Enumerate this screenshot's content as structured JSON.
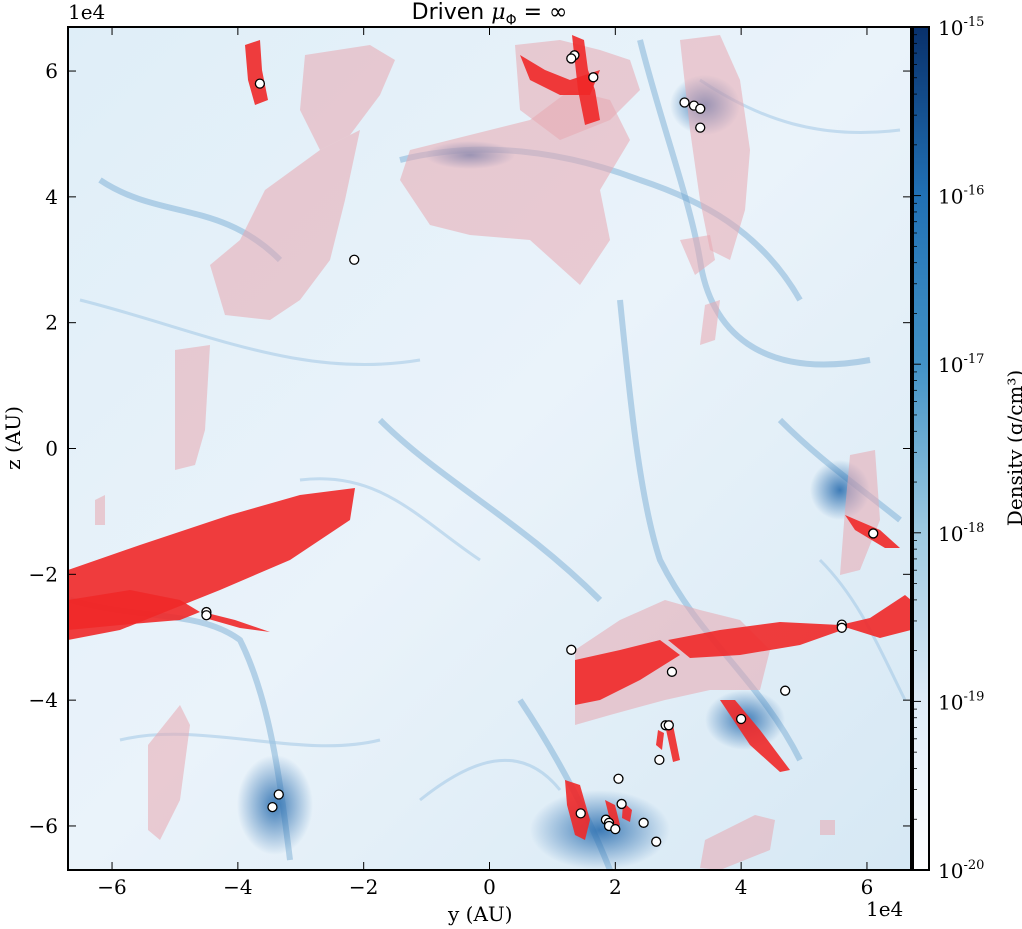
{
  "chart_data": {
    "type": "heatmap",
    "title_prefix": "Driven ",
    "title_math": "μ",
    "title_sub": "Φ",
    "title_suffix": " = ∞",
    "xlabel": "y  (AU)",
    "ylabel": "z  (AU)",
    "x_offset_label": "1e4",
    "y_offset_label": "1e4",
    "xlim": [
      -6.7,
      6.7
    ],
    "ylim": [
      -6.7,
      6.7
    ],
    "xticks": [
      -6,
      -4,
      -2,
      0,
      2,
      4,
      6
    ],
    "yticks": [
      -6,
      -4,
      -2,
      0,
      2,
      4,
      6
    ],
    "colorbar": {
      "label": "Density  (g/cm³)",
      "scale": "log",
      "range": [
        1e-20,
        1e-15
      ],
      "tick_exponents": [
        -20,
        -19,
        -18,
        -17,
        -16,
        -15
      ],
      "colors": [
        "#ffffff",
        "#08306b"
      ]
    },
    "overlay_color": "#ff0000",
    "sink_particles": [
      {
        "x": -3.65,
        "y": 5.8
      },
      {
        "x": 1.35,
        "y": 6.25
      },
      {
        "x": 1.3,
        "y": 6.2
      },
      {
        "x": 1.65,
        "y": 5.9
      },
      {
        "x": 3.1,
        "y": 5.5
      },
      {
        "x": 3.25,
        "y": 5.45
      },
      {
        "x": 3.35,
        "y": 5.4
      },
      {
        "x": 3.35,
        "y": 5.1
      },
      {
        "x": -2.15,
        "y": 3.0
      },
      {
        "x": 6.1,
        "y": -1.35
      },
      {
        "x": -4.5,
        "y": -2.6
      },
      {
        "x": -4.5,
        "y": -2.65
      },
      {
        "x": 5.6,
        "y": -2.8
      },
      {
        "x": 5.6,
        "y": -2.85
      },
      {
        "x": 1.3,
        "y": -3.2
      },
      {
        "x": 2.9,
        "y": -3.55
      },
      {
        "x": 4.7,
        "y": -3.85
      },
      {
        "x": 4.0,
        "y": -4.3
      },
      {
        "x": 2.8,
        "y": -4.4
      },
      {
        "x": 2.85,
        "y": -4.4
      },
      {
        "x": 2.7,
        "y": -4.95
      },
      {
        "x": 2.05,
        "y": -5.25
      },
      {
        "x": -3.35,
        "y": -5.5
      },
      {
        "x": -3.45,
        "y": -5.7
      },
      {
        "x": 2.1,
        "y": -5.65
      },
      {
        "x": 1.45,
        "y": -5.8
      },
      {
        "x": 1.85,
        "y": -5.9
      },
      {
        "x": 1.9,
        "y": -5.95
      },
      {
        "x": 1.9,
        "y": -6.0
      },
      {
        "x": 2.0,
        "y": -6.05
      },
      {
        "x": 2.45,
        "y": -5.95
      },
      {
        "x": 2.65,
        "y": -6.25
      }
    ]
  }
}
